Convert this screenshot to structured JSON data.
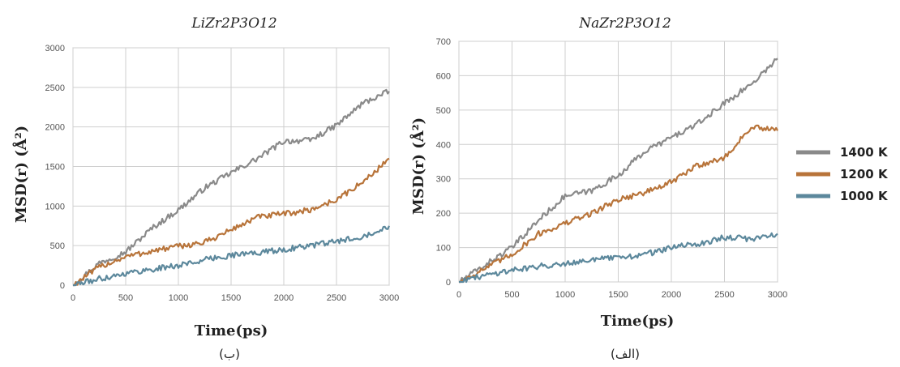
{
  "chart_data": [
    {
      "type": "line",
      "title": "LiZr2P3O12",
      "xlabel": "Time(ps)",
      "ylabel": "MSD(r) (Å²)",
      "caption": "(ب)",
      "xlim": [
        0,
        3000
      ],
      "ylim": [
        0,
        3000
      ],
      "xticks": [
        "0",
        "500",
        "1000",
        "1500",
        "2000",
        "2500",
        "3000"
      ],
      "yticks": [
        "0",
        "500",
        "1000",
        "1500",
        "2000",
        "2500",
        "3000"
      ],
      "grid": true,
      "x": [
        0,
        250,
        500,
        750,
        1000,
        1250,
        1500,
        1750,
        2000,
        2250,
        2500,
        2750,
        3000
      ],
      "series": [
        {
          "name": "1400 K",
          "color": "#8a8a8a",
          "values": [
            0,
            280,
            420,
            720,
            950,
            1230,
            1420,
            1600,
            1820,
            1830,
            2020,
            2300,
            2450
          ]
        },
        {
          "name": "1200 K",
          "color": "#b8743a",
          "values": [
            0,
            230,
            360,
            430,
            490,
            540,
            700,
            860,
            900,
            950,
            1080,
            1300,
            1600
          ]
        },
        {
          "name": "1000 K",
          "color": "#5c889c",
          "values": [
            0,
            80,
            150,
            200,
            250,
            320,
            380,
            410,
            450,
            500,
            550,
            620,
            750
          ]
        }
      ]
    },
    {
      "type": "line",
      "title": "NaZr2P3O12",
      "xlabel": "Time(ps)",
      "ylabel": "MSD(r) (Å²)",
      "caption": "(الف)",
      "xlim": [
        0,
        3000
      ],
      "ylim": [
        0,
        700
      ],
      "xticks": [
        "0",
        "500",
        "1000",
        "1500",
        "2000",
        "2500",
        "3000"
      ],
      "yticks": [
        "0",
        "100",
        "200",
        "300",
        "400",
        "500",
        "600",
        "700"
      ],
      "grid": true,
      "x": [
        0,
        250,
        500,
        750,
        1000,
        1250,
        1500,
        1750,
        2000,
        2250,
        2500,
        2750,
        3000
      ],
      "series": [
        {
          "name": "1400 K",
          "color": "#8a8a8a",
          "values": [
            0,
            50,
            100,
            180,
            250,
            265,
            310,
            380,
            420,
            460,
            520,
            575,
            650
          ]
        },
        {
          "name": "1200 K",
          "color": "#b8743a",
          "values": [
            0,
            40,
            80,
            140,
            170,
            200,
            240,
            260,
            290,
            340,
            360,
            450,
            440
          ]
        },
        {
          "name": "1000 K",
          "color": "#5c889c",
          "values": [
            0,
            20,
            35,
            45,
            55,
            65,
            70,
            80,
            100,
            110,
            130,
            125,
            140
          ]
        }
      ]
    }
  ],
  "legend": {
    "position": "right",
    "items": [
      {
        "label": "1400 K",
        "color": "#8a8a8a"
      },
      {
        "label": "1200 K",
        "color": "#b8743a"
      },
      {
        "label": "1000 K",
        "color": "#5c889c"
      }
    ]
  }
}
